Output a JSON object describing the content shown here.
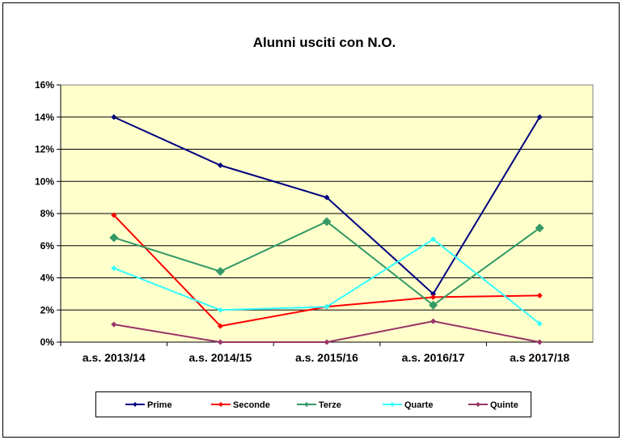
{
  "chart_data": {
    "type": "line",
    "title": "Alunni usciti con N.O.",
    "categories": [
      "a.s. 2013/14",
      "a.s. 2014/15",
      "a.s. 2015/16",
      "a.s. 2016/17",
      "a.s  2017/18"
    ],
    "ylim": [
      0,
      16
    ],
    "yticks": [
      "0%",
      "2%",
      "4%",
      "6%",
      "8%",
      "10%",
      "12%",
      "14%",
      "16%"
    ],
    "grid": true,
    "legend_position": "bottom",
    "plot_background": "#FFFFCC",
    "series": [
      {
        "name": "Prime",
        "color": "#000080",
        "values": [
          14,
          11,
          9,
          3,
          14
        ]
      },
      {
        "name": "Seconde",
        "color": "#FF0000",
        "values": [
          7.9,
          1.0,
          2.2,
          2.8,
          2.9
        ]
      },
      {
        "name": "Terze",
        "color": "#339966",
        "values": [
          6.5,
          4.4,
          7.5,
          2.3,
          7.1
        ]
      },
      {
        "name": "Quarte",
        "color": "#33FFFF",
        "values": [
          4.6,
          2.0,
          2.2,
          6.4,
          1.15
        ]
      },
      {
        "name": "Quinte",
        "color": "#993366",
        "values": [
          1.1,
          0,
          0,
          1.3,
          0
        ]
      }
    ]
  }
}
